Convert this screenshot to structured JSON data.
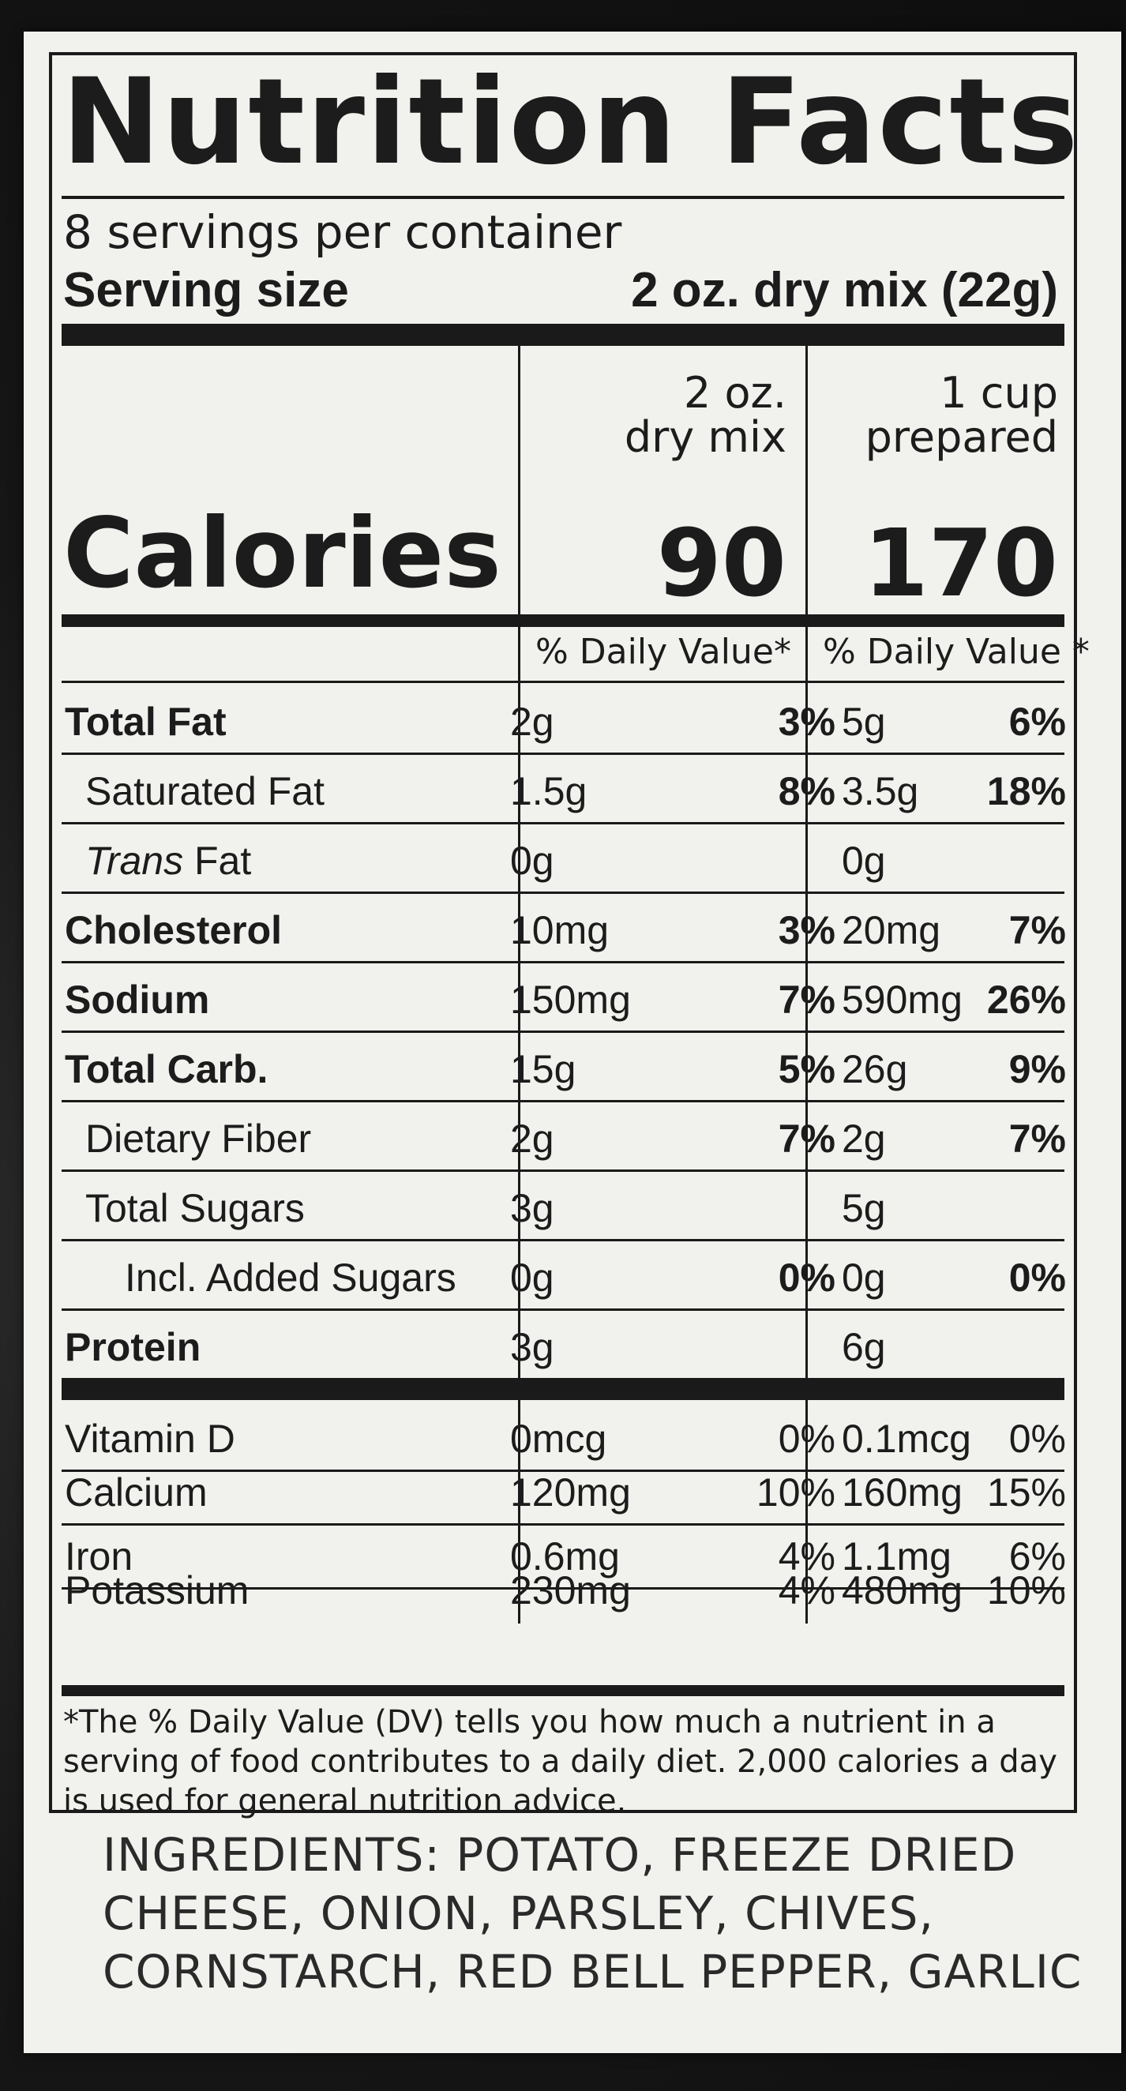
{
  "label": {
    "title": "Nutrition Facts",
    "servings_per_container": "8 servings per container",
    "serving_size_label": "Serving size",
    "serving_size_value": "2 oz. dry mix (22g)",
    "columns": [
      {
        "heading_line1": "2 oz.",
        "heading_line2": "dry mix",
        "calories": "90",
        "dv_header": "% Daily Value*"
      },
      {
        "heading_line1": "1 cup",
        "heading_line2": "prepared",
        "calories": "170",
        "dv_header": "% Daily Value *"
      }
    ],
    "calories_label": "Calories",
    "nutrients": [
      {
        "name": "Total Fat",
        "amount1": "2g",
        "dv1": "3%",
        "amount2": "5g",
        "dv2": "6%"
      },
      {
        "name": "Saturated Fat",
        "amount1": "1.5g",
        "dv1": "8%",
        "amount2": "3.5g",
        "dv2": "18%"
      },
      {
        "name_prefix": "Trans",
        "name_suffix": " Fat",
        "amount1": "0g",
        "dv1": "",
        "amount2": "0g",
        "dv2": ""
      },
      {
        "name": "Cholesterol",
        "amount1": "10mg",
        "dv1": "3%",
        "amount2": "20mg",
        "dv2": "7%"
      },
      {
        "name": "Sodium",
        "amount1": "150mg",
        "dv1": "7%",
        "amount2": "590mg",
        "dv2": "26%"
      },
      {
        "name": "Total Carb.",
        "amount1": "15g",
        "dv1": "5%",
        "amount2": "26g",
        "dv2": "9%"
      },
      {
        "name": "Dietary Fiber",
        "amount1": "2g",
        "dv1": "7%",
        "amount2": "2g",
        "dv2": "7%"
      },
      {
        "name": "Total Sugars",
        "amount1": "3g",
        "dv1": "",
        "amount2": "5g",
        "dv2": ""
      },
      {
        "name": "Incl. Added Sugars",
        "amount1": "0g",
        "dv1": "0%",
        "amount2": "0g",
        "dv2": "0%"
      },
      {
        "name": "Protein",
        "amount1": "3g",
        "dv1": "",
        "amount2": "6g",
        "dv2": ""
      }
    ],
    "vitamins": [
      {
        "name": "Vitamin D",
        "amount1": "0mcg",
        "dv1": "0%",
        "amount2": "0.1mcg",
        "dv2": "0%"
      },
      {
        "name": "Calcium",
        "amount1": "120mg",
        "dv1": "10%",
        "amount2": "160mg",
        "dv2": "15%"
      },
      {
        "name": "Iron",
        "amount1": "0.6mg",
        "dv1": "4%",
        "amount2": "1.1mg",
        "dv2": "6%"
      },
      {
        "name": "Potassium",
        "amount1": "230mg",
        "dv1": "4%",
        "amount2": "480mg",
        "dv2": "10%"
      }
    ],
    "footnote": "*The % Daily Value (DV) tells you how much a nutrient in a serving of food contributes to a daily diet. 2,000 calories a day is used for general nutrition advice."
  },
  "ingredients": "INGREDIENTS: POTATO, FREEZE DRIED CHEESE, ONION, PARSLEY, CHIVES, CORNSTARCH, RED BELL PEPPER, GARLIC"
}
